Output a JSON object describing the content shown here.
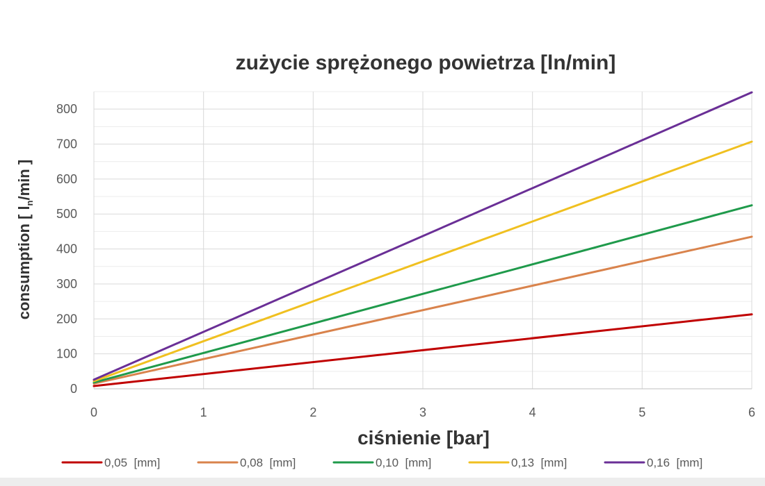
{
  "chart_data": {
    "type": "line",
    "title": "zużycie sprężonego powietrza [ln/min]",
    "xlabel": "ciśnienie [bar]",
    "ylabel": {
      "prefix": "consumption [ l",
      "subscript": "n",
      "suffix": "/min ]"
    },
    "xlim": [
      0,
      6
    ],
    "ylim": [
      0,
      850
    ],
    "xticks": [
      0,
      1,
      2,
      3,
      4,
      5,
      6
    ],
    "yticks": [
      0,
      100,
      200,
      300,
      400,
      500,
      600,
      700,
      800
    ],
    "grid": true,
    "legend_position": "bottom",
    "series": [
      {
        "name": "0,05  [mm]",
        "color": "#c00000",
        "x": [
          0,
          6
        ],
        "y": [
          8,
          213
        ]
      },
      {
        "name": "0,08  [mm]",
        "color": "#d9834c",
        "x": [
          0,
          6
        ],
        "y": [
          15,
          435
        ]
      },
      {
        "name": "0,10  [mm]",
        "color": "#1f9a4b",
        "x": [
          0,
          6
        ],
        "y": [
          18,
          525
        ]
      },
      {
        "name": "0,13  [mm]",
        "color": "#f0c020",
        "x": [
          0,
          6
        ],
        "y": [
          22,
          707
        ]
      },
      {
        "name": "0,16  [mm]",
        "color": "#6a2f96",
        "x": [
          0,
          6
        ],
        "y": [
          26,
          848
        ]
      }
    ]
  }
}
